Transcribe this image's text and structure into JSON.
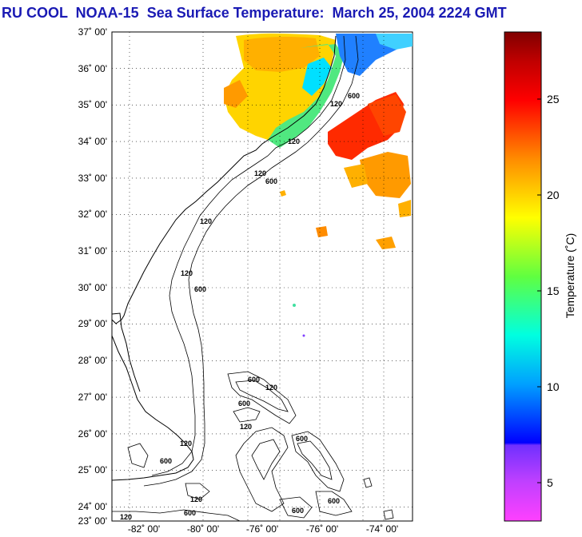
{
  "title": "RU COOL  NOAA-15  Sea Surface Temperature:  March 25, 2004 2224 GMT",
  "map": {
    "lat_ticks": [
      "37˚ 00'",
      "36˚ 00'",
      "35˚ 00'",
      "34˚ 00'",
      "33˚ 00'",
      "32˚ 00'",
      "31˚ 00'",
      "30˚ 00'",
      "29˚ 00'",
      "28˚ 00'",
      "27˚ 00'",
      "26˚ 00'",
      "25˚ 00'",
      "24˚ 00'",
      "23˚ 00'"
    ],
    "lon_ticks": [
      "-82˚ 00'",
      "-80˚ 00'",
      "-76˚ 00'",
      "-76˚ 00'",
      "-74˚ 00'"
    ],
    "lat_range": [
      23,
      37
    ],
    "grid": true,
    "contour_labels": [
      "120",
      "600"
    ]
  },
  "colorbar": {
    "label": "Temperature (˚C)",
    "ticks": [
      "25",
      "20",
      "15",
      "10",
      "5"
    ],
    "tick_values": [
      25,
      20,
      15,
      10,
      5
    ],
    "range": [
      3,
      28.5
    ],
    "colors": {
      "maroon": "#800000",
      "red": "#ff2000",
      "orange": "#ff8c00",
      "yellow": "#ffff00",
      "green": "#40ff60",
      "cyan": "#00ffff",
      "blue": "#0000ff",
      "purple": "#8020ff",
      "magenta": "#ff40ff"
    }
  }
}
